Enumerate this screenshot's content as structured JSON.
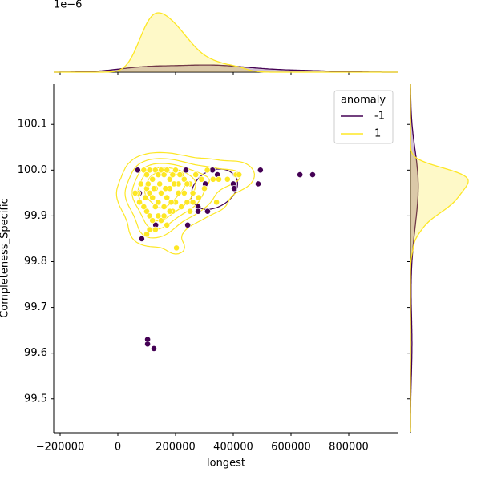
{
  "chart_data": {
    "type": "scatter",
    "xlabel": "longest",
    "ylabel": "Completeness_Specific",
    "top_margin_offset_label": "1e−6",
    "legend_title": "anomaly",
    "legend": "upper right",
    "xlim": [
      -222222,
      972222
    ],
    "ylim": [
      99.426,
      100.188
    ],
    "xticks": [
      {
        "value": -200000,
        "label": "−200000"
      },
      0,
      200000,
      400000,
      600000,
      800000
    ],
    "yticks": [
      99.5,
      99.6,
      99.7,
      99.8,
      99.9,
      {
        "value": 100,
        "label": "100.0"
      },
      100.1
    ],
    "series": [
      {
        "name": "-1",
        "color": "#440154",
        "x": [
          236000,
          328000,
          345000,
          303000,
          278000,
          278000,
          311000,
          242000,
          131000,
          75000,
          83000,
          400000,
          403000,
          408000,
          494000,
          486000,
          631000,
          675000,
          103000,
          103000,
          125000,
          69000
        ],
        "y": [
          100.0,
          100.0,
          99.99,
          99.97,
          99.92,
          99.91,
          99.91,
          99.88,
          99.88,
          99.95,
          99.85,
          99.97,
          99.96,
          99.99,
          100.0,
          99.97,
          99.99,
          99.99,
          99.63,
          99.62,
          99.61,
          100.0
        ]
      },
      {
        "name": "1",
        "color": "#fde725",
        "x": [
          70000,
          80000,
          90000,
          100000,
          110000,
          120000,
          130000,
          140000,
          150000,
          160000,
          170000,
          180000,
          190000,
          200000,
          210000,
          220000,
          230000,
          250000,
          260000,
          270000,
          290000,
          310000,
          330000,
          350000,
          380000,
          410000,
          420000,
          342000,
          100000,
          110000,
          120000,
          130000,
          140000,
          150000,
          160000,
          170000,
          180000,
          190000,
          200000,
          210000,
          220000,
          230000,
          240000,
          250000,
          100000,
          110000,
          120000,
          130000,
          140000,
          150000,
          160000,
          170000,
          180000,
          110000,
          130000,
          100000,
          203000,
          60000,
          75000,
          90000,
          95000,
          105000,
          125000,
          145000,
          165000,
          185000,
          195000,
          215000,
          240000,
          260000,
          280000,
          300000
        ],
        "y": [
          99.95,
          99.97,
          100.0,
          99.99,
          100.0,
          99.98,
          100.0,
          99.99,
          100.0,
          99.99,
          100.0,
          99.98,
          99.99,
          100.0,
          99.97,
          99.99,
          99.98,
          99.97,
          99.95,
          99.99,
          99.98,
          100.0,
          99.98,
          99.98,
          99.98,
          99.99,
          99.99,
          99.93,
          99.96,
          99.95,
          99.94,
          99.96,
          99.93,
          99.95,
          99.92,
          99.94,
          99.96,
          99.91,
          99.93,
          99.95,
          99.92,
          99.95,
          99.93,
          99.91,
          99.91,
          99.9,
          99.89,
          99.92,
          99.9,
          99.89,
          99.9,
          99.88,
          99.91,
          99.87,
          99.87,
          99.86,
          99.83,
          99.95,
          99.93,
          99.92,
          99.94,
          99.97,
          99.96,
          99.97,
          99.96,
          99.93,
          99.97,
          99.99,
          99.97,
          99.93,
          99.94,
          99.96
        ]
      }
    ]
  }
}
